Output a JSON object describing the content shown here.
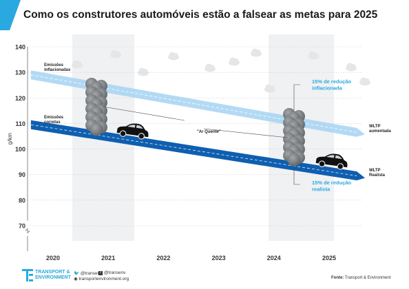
{
  "title": "Como os construtores automóveis estão a falsear as metas para 2025",
  "chart_data": {
    "type": "line",
    "ylabel": "g/km",
    "xlabel": "",
    "ylim": [
      60,
      140
    ],
    "y_ticks": [
      "140",
      "130",
      "120",
      "110",
      "100",
      "90",
      "80",
      "70"
    ],
    "x_ticks": [
      "2020",
      "2021",
      "2022",
      "2023",
      "2024",
      "2025"
    ],
    "series": [
      {
        "name": "WLTP aumentada",
        "start_label": "Emissões inflacionadas",
        "x": [
          2019.6,
          2025.5
        ],
        "values": [
          129,
          106.5
        ],
        "color": "#a6d3f2"
      },
      {
        "name": "WLTP Realista",
        "start_label": "Emissões corretas",
        "x": [
          2019.6,
          2025.5
        ],
        "values": [
          109.5,
          89.5
        ],
        "color": "#0f5fb0"
      }
    ],
    "annotations": {
      "inflated_reduction": "15% de redução inflacionada",
      "real_reduction": "15% de redução realista",
      "hot_air": "\"Ar Quente\""
    }
  },
  "labels": {
    "inflated_start": [
      "Emissões",
      "inflacionadas"
    ],
    "correct_start": [
      "Emissões",
      "corretas"
    ],
    "wltp_high": [
      "WLTP",
      "aumentada"
    ],
    "wltp_real": [
      "WLTP",
      "Realista"
    ],
    "inflated_reduction": [
      "15% de redução",
      "inflacionada"
    ],
    "real_reduction": [
      "15% de redução",
      "realista"
    ]
  },
  "footer": {
    "logo_line1": "TRANSPORT &",
    "logo_line2": "ENVIRONMENT",
    "twitter": "@transenv",
    "facebook": "@transenv",
    "website": "transportenvironment.org",
    "source_label": "Fonte:",
    "source_value": "Transport & Environment"
  },
  "colors": {
    "accent": "#2aa9e0",
    "dark_band": "#0f5fb0",
    "light_band": "#a6d3f2",
    "smoke": "#7f8386"
  }
}
